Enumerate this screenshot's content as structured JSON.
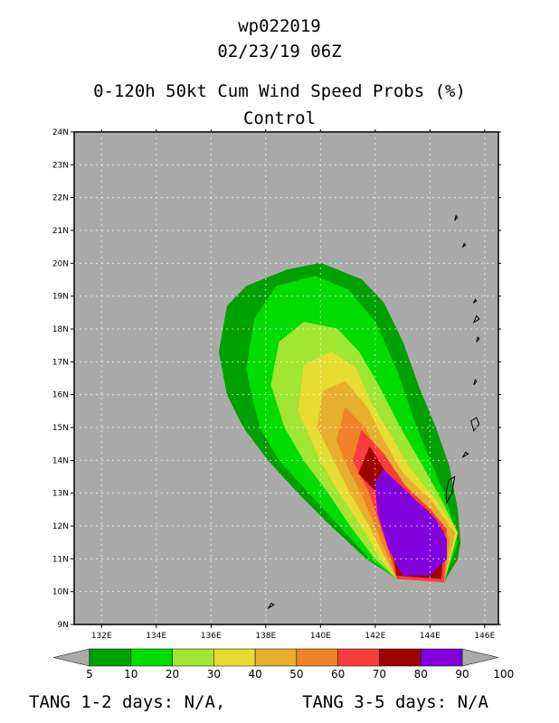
{
  "title": {
    "storm_id": "wp022019",
    "datetime": "02/23/19 06Z",
    "product": "0-120h 50kt Cum Wind Speed Probs (%)",
    "member": "Control"
  },
  "chart_data": {
    "type": "heatmap",
    "title": "0-120h 50kt Cum Wind Speed Probs (%)",
    "xlabel": "",
    "ylabel": "",
    "xlim": [
      131,
      146.5
    ],
    "ylim": [
      9,
      24
    ],
    "x_ticks": [
      "132E",
      "134E",
      "136E",
      "138E",
      "140E",
      "142E",
      "144E",
      "146E"
    ],
    "y_ticks": [
      "9N",
      "10N",
      "11N",
      "12N",
      "13N",
      "14N",
      "15N",
      "16N",
      "17N",
      "18N",
      "19N",
      "20N",
      "21N",
      "22N",
      "23N",
      "24N"
    ],
    "grid": true,
    "background_color": "#aaaaaa",
    "contour_levels": [
      5,
      10,
      20,
      30,
      40,
      50,
      60,
      70,
      80,
      90,
      100
    ],
    "level_colors": [
      "#00a000",
      "#00dc00",
      "#a0e632",
      "#e6dc32",
      "#e6af2d",
      "#f08228",
      "#fa3c3c",
      "#a00000",
      "#8200dc",
      "#8200dc"
    ],
    "regions": [
      {
        "min": 5,
        "color": "#00a000",
        "polygon": [
          [
            136.3,
            17.3
          ],
          [
            136.6,
            18.7
          ],
          [
            137.3,
            19.3
          ],
          [
            138.8,
            19.8
          ],
          [
            140,
            20
          ],
          [
            141.5,
            19.5
          ],
          [
            142.3,
            18.8
          ],
          [
            143,
            17.6
          ],
          [
            143.6,
            16.2
          ],
          [
            144.2,
            15
          ],
          [
            144.7,
            13.8
          ],
          [
            145,
            12.5
          ],
          [
            145.1,
            11.5
          ],
          [
            145,
            11
          ],
          [
            144.5,
            10.3
          ],
          [
            142.8,
            10.4
          ],
          [
            141.7,
            11
          ],
          [
            140.4,
            12
          ],
          [
            139.2,
            13
          ],
          [
            138.1,
            14
          ],
          [
            137.2,
            15
          ],
          [
            136.6,
            16
          ]
        ]
      },
      {
        "min": 10,
        "color": "#00dc00",
        "polygon": [
          [
            137.3,
            16.8
          ],
          [
            137.6,
            18.3
          ],
          [
            138.4,
            19.3
          ],
          [
            139.8,
            19.6
          ],
          [
            141,
            19.2
          ],
          [
            142,
            18.2
          ],
          [
            142.8,
            16.7
          ],
          [
            143.5,
            15
          ],
          [
            144.1,
            13.8
          ],
          [
            144.7,
            12.5
          ],
          [
            145,
            11.5
          ],
          [
            144.5,
            10.3
          ],
          [
            142.8,
            10.4
          ],
          [
            141.8,
            11
          ],
          [
            140.7,
            12
          ],
          [
            139.6,
            13
          ],
          [
            138.5,
            14
          ],
          [
            137.8,
            15
          ],
          [
            137.5,
            16
          ]
        ]
      },
      {
        "min": 20,
        "color": "#a0e632",
        "polygon": [
          [
            138.2,
            16.3
          ],
          [
            138.5,
            17.6
          ],
          [
            139.4,
            18.2
          ],
          [
            140.6,
            18
          ],
          [
            141.4,
            17.3
          ],
          [
            142.1,
            16.3
          ],
          [
            142.9,
            15
          ],
          [
            143.6,
            14
          ],
          [
            144.4,
            12.8
          ],
          [
            145,
            11.8
          ],
          [
            144.5,
            10.3
          ],
          [
            142.8,
            10.4
          ],
          [
            142,
            11
          ],
          [
            141.1,
            12
          ],
          [
            140.3,
            13
          ],
          [
            139.4,
            14
          ],
          [
            138.7,
            15
          ]
        ]
      },
      {
        "min": 30,
        "color": "#e6dc32",
        "polygon": [
          [
            139.2,
            15.5
          ],
          [
            139.4,
            16.9
          ],
          [
            140.4,
            17.3
          ],
          [
            141.3,
            16.8
          ],
          [
            141.8,
            15.8
          ],
          [
            142.6,
            14.7
          ],
          [
            143.2,
            13.8
          ],
          [
            144.2,
            12.8
          ],
          [
            145,
            11.8
          ],
          [
            144.5,
            10.3
          ],
          [
            142.8,
            10.4
          ],
          [
            142.2,
            11
          ],
          [
            141.5,
            12
          ],
          [
            140.7,
            13
          ],
          [
            140,
            14
          ]
        ]
      },
      {
        "min": 40,
        "color": "#e6af2d",
        "polygon": [
          [
            139.9,
            15
          ],
          [
            140.1,
            16.1
          ],
          [
            140.9,
            16.4
          ],
          [
            141.7,
            15.6
          ],
          [
            142.3,
            14.6
          ],
          [
            143,
            13.6
          ],
          [
            144,
            12.8
          ],
          [
            144.9,
            11.8
          ],
          [
            144.5,
            10.3
          ],
          [
            142.8,
            10.4
          ],
          [
            142.4,
            11
          ],
          [
            141.8,
            12
          ],
          [
            141.1,
            13
          ],
          [
            140.5,
            14
          ]
        ]
      },
      {
        "min": 60,
        "color": "#f08228",
        "polygon": [
          [
            140.6,
            14.6
          ],
          [
            140.9,
            15.6
          ],
          [
            141.6,
            15
          ],
          [
            142.3,
            14
          ],
          [
            143.1,
            13.2
          ],
          [
            144.2,
            12.3
          ],
          [
            144.7,
            11.6
          ],
          [
            144.5,
            10.3
          ],
          [
            142.8,
            10.4
          ],
          [
            142.5,
            11
          ],
          [
            142,
            12
          ],
          [
            141.5,
            13
          ],
          [
            141,
            13.8
          ]
        ]
      },
      {
        "min": 70,
        "color": "#fa3c3c",
        "polygon": [
          [
            141.2,
            14
          ],
          [
            141.5,
            14.9
          ],
          [
            142.3,
            14.2
          ],
          [
            143.1,
            13.2
          ],
          [
            144,
            12.5
          ],
          [
            144.6,
            11.9
          ],
          [
            144.5,
            10.3
          ],
          [
            142.8,
            10.4
          ],
          [
            142.6,
            11
          ],
          [
            142.2,
            12
          ],
          [
            141.8,
            13
          ]
        ]
      },
      {
        "min": 80,
        "color": "#a00000",
        "polygon": [
          [
            141.4,
            13.6
          ],
          [
            141.8,
            14.4
          ],
          [
            142.4,
            13.6
          ],
          [
            143.1,
            13
          ],
          [
            144,
            12.4
          ],
          [
            144.5,
            11.8
          ],
          [
            144.4,
            10.4
          ],
          [
            142.8,
            10.5
          ],
          [
            142.7,
            11
          ],
          [
            142.4,
            12
          ],
          [
            142.1,
            13
          ]
        ]
      },
      {
        "min": 90,
        "color": "#8200dc",
        "polygon": [
          [
            142,
            13.3
          ],
          [
            142.3,
            13.7
          ],
          [
            143.2,
            13
          ],
          [
            144.2,
            12.2
          ],
          [
            144.6,
            11.6
          ],
          [
            144.6,
            11
          ],
          [
            144,
            10.5
          ],
          [
            143,
            10.5
          ],
          [
            142.5,
            11.3
          ],
          [
            142.1,
            12.4
          ]
        ]
      }
    ],
    "islands": [
      [
        [
          144.6,
          12.7
        ],
        [
          144.8,
          13
        ],
        [
          144.9,
          13.5
        ],
        [
          144.7,
          13.4
        ],
        [
          144.6,
          13.1
        ]
      ],
      [
        [
          145.6,
          14.9
        ],
        [
          145.8,
          15.1
        ],
        [
          145.7,
          15.3
        ],
        [
          145.5,
          15.2
        ]
      ],
      [
        [
          145.2,
          14.1
        ],
        [
          145.4,
          14.2
        ],
        [
          145.3,
          14.25
        ]
      ],
      [
        [
          145.6,
          16.3
        ],
        [
          145.7,
          16.4
        ],
        [
          145.65,
          16.45
        ]
      ],
      [
        [
          145.7,
          17.6
        ],
        [
          145.8,
          17.7
        ],
        [
          145.75,
          17.75
        ]
      ],
      [
        [
          145.6,
          18.2
        ],
        [
          145.8,
          18.3
        ],
        [
          145.7,
          18.4
        ]
      ],
      [
        [
          145.6,
          18.8
        ],
        [
          145.7,
          18.85
        ],
        [
          145.65,
          18.9
        ]
      ],
      [
        [
          145.2,
          20.5
        ],
        [
          145.3,
          20.55
        ],
        [
          145.25,
          20.6
        ]
      ],
      [
        [
          144.9,
          21.3
        ],
        [
          145,
          21.4
        ],
        [
          144.95,
          21.45
        ]
      ],
      [
        [
          138.1,
          9.5
        ],
        [
          138.3,
          9.6
        ],
        [
          138.2,
          9.65
        ]
      ]
    ]
  },
  "colorbar": {
    "labels": [
      "5",
      "10",
      "20",
      "30",
      "40",
      "50",
      "60",
      "70",
      "80",
      "90",
      "100"
    ],
    "colors": [
      "#00a000",
      "#00dc00",
      "#a0e632",
      "#e6dc32",
      "#e6af2d",
      "#f08228",
      "#fa3c3c",
      "#a00000",
      "#8200dc",
      "#8200dc"
    ],
    "arrow_color": "#aaaaaa"
  },
  "footer": {
    "left": "TANG 1-2 days:  N/A,",
    "right": "TANG 3-5 days:  N/A"
  }
}
